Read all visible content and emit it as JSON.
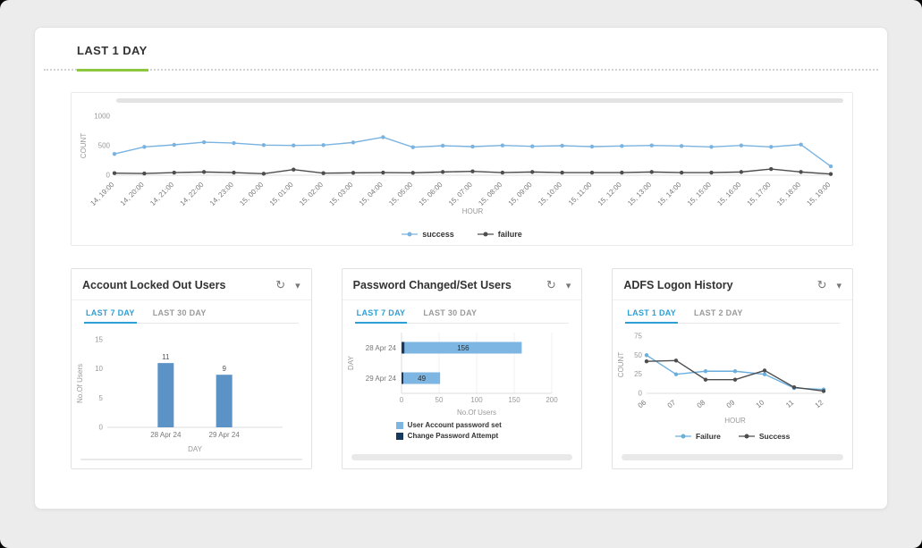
{
  "page": {
    "title": "LAST 1 DAY"
  },
  "icons": {
    "refresh": "↻",
    "caret": "▾"
  },
  "main_chart": {
    "type": "line",
    "ylabel": "COUNT",
    "xlabel": "HOUR",
    "ylim": [
      0,
      1000
    ],
    "yticks": [
      0,
      500,
      1000
    ],
    "categories": [
      "14, 19:00",
      "14, 20:00",
      "14, 21:00",
      "14, 22:00",
      "14, 23:00",
      "15, 00:00",
      "15, 01:00",
      "15, 02:00",
      "15, 03:00",
      "15, 04:00",
      "15, 05:00",
      "15, 06:00",
      "15, 07:00",
      "15, 08:00",
      "15, 09:00",
      "15, 10:00",
      "15, 11:00",
      "15, 12:00",
      "15, 13:00",
      "15, 14:00",
      "15, 15:00",
      "15, 16:00",
      "15, 17:00",
      "15, 18:00",
      "15, 19:00"
    ],
    "series": [
      {
        "name": "success",
        "color": "#7ab3e0",
        "values": [
          360,
          480,
          515,
          560,
          545,
          510,
          505,
          510,
          555,
          645,
          475,
          500,
          485,
          505,
          490,
          500,
          485,
          495,
          505,
          495,
          480,
          505,
          480,
          520,
          150
        ]
      },
      {
        "name": "failure",
        "color": "#4d4d4d",
        "values": [
          35,
          30,
          45,
          55,
          45,
          25,
          95,
          35,
          40,
          45,
          40,
          55,
          65,
          45,
          55,
          45,
          45,
          45,
          55,
          45,
          45,
          55,
          105,
          55,
          20
        ]
      }
    ],
    "legend_position": "bottom-center"
  },
  "panels": [
    {
      "title": "Account Locked Out Users",
      "tabs": [
        "LAST 7 DAY",
        "LAST 30 DAY"
      ],
      "active_tab": "LAST 7 DAY",
      "chart": {
        "type": "bar",
        "ylabel": "No.Of Users",
        "xlabel": "DAY",
        "ylim": [
          0,
          15
        ],
        "yticks": [
          0,
          5,
          10,
          15
        ],
        "categories": [
          "28 Apr 24",
          "29 Apr 24"
        ],
        "values": [
          11,
          9
        ],
        "bar_color": "#5b93c7"
      }
    },
    {
      "title": "Password Changed/Set Users",
      "tabs": [
        "LAST 7 DAY",
        "LAST 30 DAY"
      ],
      "active_tab": "LAST 7 DAY",
      "chart": {
        "type": "hbar",
        "ylabel": "DAY",
        "xlabel": "No.Of Users",
        "xlim": [
          0,
          200
        ],
        "xticks": [
          0,
          50,
          100,
          150,
          200
        ],
        "categories": [
          "28 Apr 24",
          "29 Apr 24"
        ],
        "series": [
          {
            "name": "User Account password set",
            "color": "#7db6e2",
            "values": [
              156,
              49
            ]
          },
          {
            "name": "Change Password Attempt",
            "color": "#17395e",
            "values": [
              4,
              1
            ]
          }
        ],
        "legend_position": "bottom-left"
      }
    },
    {
      "title": "ADFS Logon History",
      "tabs": [
        "LAST 1 DAY",
        "LAST 2 DAY"
      ],
      "active_tab": "LAST 1 DAY",
      "chart": {
        "type": "line",
        "ylabel": "COUNT",
        "xlabel": "HOUR",
        "ylim": [
          0,
          75
        ],
        "yticks": [
          0,
          25,
          50,
          75
        ],
        "categories": [
          "06",
          "07",
          "08",
          "09",
          "10",
          "11",
          "12"
        ],
        "series": [
          {
            "name": "Failure",
            "color": "#6aaede",
            "values": [
              50,
              25,
              29,
              29,
              25,
              7,
              5
            ]
          },
          {
            "name": "Success",
            "color": "#4d4d4d",
            "values": [
              42,
              43,
              18,
              18,
              30,
              8,
              3
            ]
          }
        ],
        "legend_position": "bottom-center"
      }
    }
  ]
}
